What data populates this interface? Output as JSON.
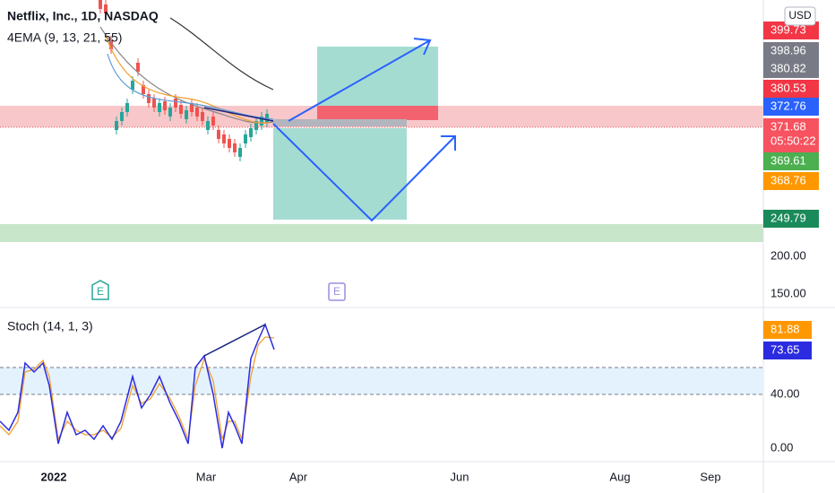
{
  "header": {
    "title": "Netflix, Inc., 1D, NASDAQ",
    "indicator": "4EMA (9, 13, 21, 55)",
    "currency": "USD"
  },
  "price_labels": [
    {
      "label": "399.73",
      "color": "#f23645"
    },
    {
      "label": "398.96",
      "color": "#787b86"
    },
    {
      "label": "380.82",
      "color": "#787b86"
    },
    {
      "label": "380.53",
      "color": "#f23645"
    },
    {
      "label": "372.76",
      "color": "#2962ff"
    },
    {
      "label": "371.68",
      "sub": "05:50:22",
      "color": "#f7525f"
    },
    {
      "label": "369.61",
      "color": "#4caf50"
    },
    {
      "label": "368.76",
      "color": "#ff9800"
    },
    {
      "label": "249.79",
      "color": "#1b8a5a"
    },
    {
      "label": "200.00"
    },
    {
      "label": "150.00"
    }
  ],
  "earnings": [
    "E",
    "E"
  ],
  "stoch": {
    "title": "Stoch (14, 1, 3)",
    "labels": [
      {
        "label": "81.88",
        "color": "#ff9800"
      },
      {
        "label": "73.65",
        "color": "#2b2be0"
      },
      {
        "label": "40.00"
      },
      {
        "label": "0.00"
      }
    ]
  },
  "time_axis": [
    "2022",
    "Mar",
    "Apr",
    "Jun",
    "Aug",
    "Sep"
  ]
}
